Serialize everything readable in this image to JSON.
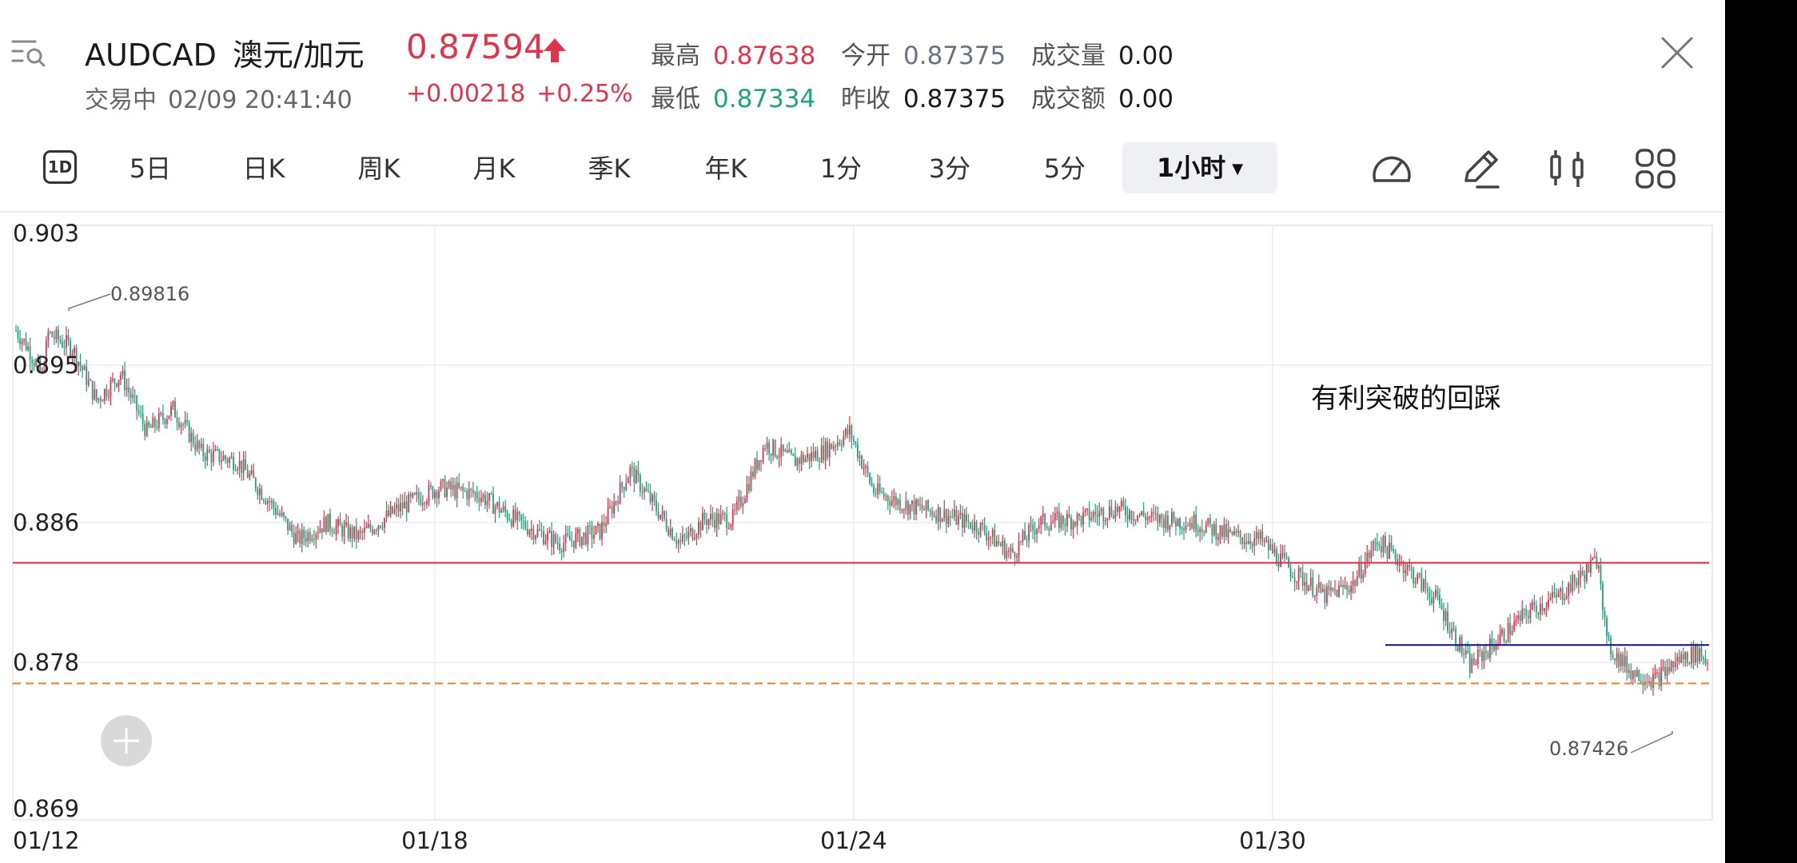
{
  "header": {
    "symbol": "AUDCAD",
    "name_cn": "澳元/加元",
    "status": "交易中",
    "timestamp": "02/09 20:41:40",
    "price": "0.87594",
    "change": "+0.00218",
    "change_pct": "+0.25%",
    "stats": {
      "high_label": "最高",
      "high": "0.87638",
      "low_label": "最低",
      "low": "0.87334",
      "open_label": "今开",
      "open": "0.87375",
      "prev_close_label": "昨收",
      "prev_close": "0.87375",
      "volume_label": "成交量",
      "volume": "0.00",
      "amount_label": "成交额",
      "amount": "0.00"
    }
  },
  "tabs": {
    "period_1d": "1D",
    "items": [
      "5日",
      "日K",
      "周K",
      "月K",
      "季K",
      "年K",
      "1分",
      "3分",
      "5分"
    ],
    "active": "1小时"
  },
  "toolbar_icons": [
    "speedometer-icon",
    "pencil-draw-icon",
    "candlestick-icon",
    "grid-layout-icon"
  ],
  "colors": {
    "up": "#e0344c",
    "down": "#1ea37a",
    "support": "#e0344c",
    "dashed": "#e08a3a",
    "retest": "#1a1f8a"
  },
  "chart_data": {
    "type": "candlestick",
    "interval": "1小时",
    "yticks": [
      "0.903",
      "0.895",
      "0.886",
      "0.878",
      "0.869"
    ],
    "ylim": [
      0.869,
      0.903
    ],
    "xticks": [
      "01/12",
      "01/18",
      "01/24",
      "01/30"
    ],
    "annotation_text": "有利突破的回踩",
    "high_marker": "0.89816",
    "low_marker": "0.87426",
    "horizontal_lines": [
      {
        "style": "solid",
        "color": "#e0344c",
        "value": 0.8837
      },
      {
        "style": "dashed",
        "color": "#e08a3a",
        "value": 0.8768
      },
      {
        "style": "solid",
        "color": "#1a1f8a",
        "value": 0.879,
        "segment": "right"
      }
    ],
    "close_path": [
      [
        0,
        0.897
      ],
      [
        6,
        0.896
      ],
      [
        13,
        0.8944
      ],
      [
        16,
        0.8968
      ],
      [
        28,
        0.896
      ],
      [
        40,
        0.893
      ],
      [
        52,
        0.8945
      ],
      [
        65,
        0.8912
      ],
      [
        78,
        0.8925
      ],
      [
        92,
        0.89
      ],
      [
        110,
        0.8895
      ],
      [
        126,
        0.8872
      ],
      [
        140,
        0.885
      ],
      [
        154,
        0.886
      ],
      [
        170,
        0.8852
      ],
      [
        190,
        0.8868
      ],
      [
        210,
        0.888
      ],
      [
        230,
        0.8876
      ],
      [
        250,
        0.886
      ],
      [
        270,
        0.8848
      ],
      [
        290,
        0.8855
      ],
      [
        305,
        0.889
      ],
      [
        318,
        0.8868
      ],
      [
        330,
        0.8848
      ],
      [
        342,
        0.8862
      ],
      [
        356,
        0.8862
      ],
      [
        372,
        0.8905
      ],
      [
        386,
        0.8895
      ],
      [
        400,
        0.89
      ],
      [
        414,
        0.8912
      ],
      [
        426,
        0.8878
      ],
      [
        442,
        0.887
      ],
      [
        460,
        0.8865
      ],
      [
        478,
        0.8858
      ],
      [
        494,
        0.8842
      ],
      [
        508,
        0.886
      ],
      [
        528,
        0.8862
      ],
      [
        546,
        0.8868
      ],
      [
        566,
        0.8862
      ],
      [
        586,
        0.886
      ],
      [
        604,
        0.8852
      ],
      [
        618,
        0.885
      ],
      [
        634,
        0.8832
      ],
      [
        650,
        0.8818
      ],
      [
        664,
        0.8825
      ],
      [
        676,
        0.885
      ],
      [
        690,
        0.8835
      ],
      [
        706,
        0.8815
      ],
      [
        722,
        0.8778
      ],
      [
        738,
        0.8795
      ],
      [
        752,
        0.881
      ],
      [
        766,
        0.8818
      ],
      [
        778,
        0.883
      ],
      [
        786,
        0.884
      ],
      [
        790,
        0.879
      ],
      [
        802,
        0.8775
      ],
      [
        814,
        0.877
      ],
      [
        826,
        0.8782
      ],
      [
        836,
        0.8786
      ],
      [
        840,
        0.878
      ]
    ]
  }
}
